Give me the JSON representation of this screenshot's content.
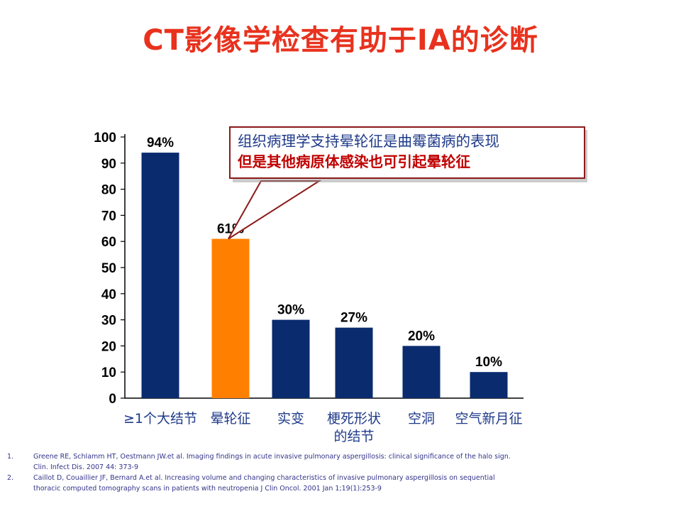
{
  "title": "CT影像学检查有助于IA的诊断",
  "chart_data": {
    "type": "bar",
    "categories": [
      "≥1个大结节",
      "晕轮征",
      "实变",
      "梗死形状的结节",
      "空洞",
      "空气新月征"
    ],
    "category_lines": [
      [
        "≥1个大结节"
      ],
      [
        "晕轮征"
      ],
      [
        "实变"
      ],
      [
        "梗死形状",
        "的结节"
      ],
      [
        "空洞"
      ],
      [
        "空气新月征"
      ]
    ],
    "values": [
      94,
      61,
      30,
      27,
      20,
      10
    ],
    "data_labels": [
      "94%",
      "61%",
      "30%",
      "27%",
      "20%",
      "10%"
    ],
    "ylim": [
      0,
      100
    ],
    "yticks": [
      0,
      10,
      20,
      30,
      40,
      50,
      60,
      70,
      80,
      90,
      100
    ],
    "highlight_index": 1,
    "colors": {
      "bar": "#0a2b6e",
      "highlight": "#ff8000",
      "axis": "#000000",
      "category_text": "#1f3a8a"
    },
    "grid": false
  },
  "callout": {
    "line1": "组织病理学支持晕轮征是曲霉菌病的表现",
    "line2": "但是其他病原体感染也可引起晕轮征",
    "border_color": "#8b1a1a"
  },
  "references": [
    {
      "num": "1.",
      "lines": [
        "Greene RE, Schlamm HT, Oestmann JW.et al. Imaging findings in acute invasive pulmonary aspergillosis: clinical significance of the halo sign.",
        "Clin. Infect Dis. 2007 44: 373-9"
      ]
    },
    {
      "num": "2.",
      "lines": [
        "Caillot D, Couaillier JF, Bernard A.et al. Increasing volume and changing characteristics of invasive pulmonary aspergillosis on sequential",
        "thoracic computed tomography scans in patients with neutropenia J Clin Oncol. 2001 Jan 1;19(1):253-9"
      ]
    }
  ]
}
